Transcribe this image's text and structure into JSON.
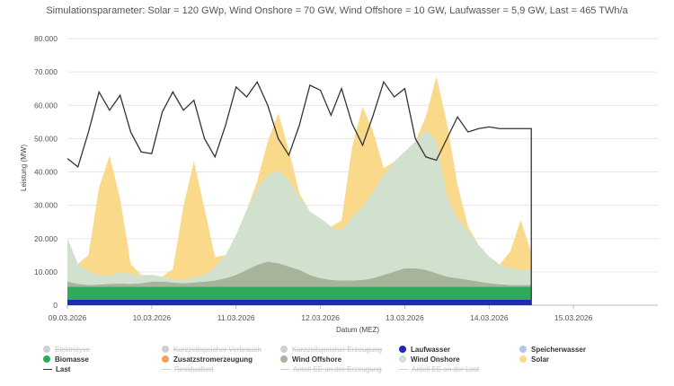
{
  "chart_data": {
    "type": "area",
    "subtitle": "Simulationsparameter: Solar = 120 GWp, Wind Onshore = 70 GW, Wind Offshore = 10 GW, Laufwasser = 5,9 GW, Last = 465 TWh/a",
    "xlabel": "Datum (MEZ)",
    "ylabel": "Leistung (MW)",
    "ylim": [
      0,
      80000
    ],
    "yticks": [
      "0",
      "10.000",
      "20.000",
      "30.000",
      "40.000",
      "50.000",
      "60.000",
      "70.000",
      "80.000"
    ],
    "xlim_hours": [
      0,
      168
    ],
    "xticks": [
      {
        "hour": 0,
        "label": "09.03.2026"
      },
      {
        "hour": 24,
        "label": "10.03.2026"
      },
      {
        "hour": 48,
        "label": "11.03.2026"
      },
      {
        "hour": 72,
        "label": "12.03.2026"
      },
      {
        "hour": 96,
        "label": "13.03.2026"
      },
      {
        "hour": 120,
        "label": "14.03.2026"
      },
      {
        "hour": 144,
        "label": "15.03.2026"
      }
    ],
    "data_end_hour": 132,
    "hours": [
      0,
      3,
      6,
      9,
      12,
      15,
      18,
      21,
      24,
      27,
      30,
      33,
      36,
      39,
      42,
      45,
      48,
      51,
      54,
      57,
      60,
      63,
      66,
      69,
      72,
      75,
      78,
      81,
      84,
      87,
      90,
      93,
      96,
      99,
      102,
      105,
      108,
      111,
      114,
      117,
      120,
      123,
      126,
      129,
      132
    ],
    "series": [
      {
        "name": "Laufwasser",
        "type": "area",
        "color": "#1f2bb5",
        "values": [
          1600,
          1600,
          1600,
          1600,
          1600,
          1600,
          1600,
          1600,
          1600,
          1600,
          1600,
          1600,
          1600,
          1600,
          1600,
          1600,
          1600,
          1600,
          1600,
          1600,
          1600,
          1600,
          1600,
          1600,
          1600,
          1600,
          1600,
          1600,
          1600,
          1600,
          1600,
          1600,
          1600,
          1600,
          1600,
          1600,
          1600,
          1600,
          1600,
          1600,
          1600,
          1600,
          1600,
          1600,
          1600
        ]
      },
      {
        "name": "Biomasse",
        "type": "area",
        "color": "#2eab5a",
        "values": [
          4000,
          4000,
          4000,
          4000,
          4000,
          4000,
          4000,
          4000,
          4000,
          4000,
          4000,
          4000,
          4000,
          4000,
          4000,
          4000,
          4000,
          4000,
          4000,
          4000,
          4000,
          4000,
          4000,
          4000,
          4000,
          4000,
          4000,
          4000,
          4000,
          4000,
          4000,
          4000,
          4000,
          4000,
          4000,
          4000,
          4000,
          4000,
          4000,
          4000,
          4000,
          4000,
          4000,
          4000,
          4000
        ]
      },
      {
        "name": "Wind Offshore",
        "type": "area",
        "color": "#a6b49c",
        "values": [
          1500,
          800,
          500,
          600,
          800,
          900,
          800,
          1000,
          1500,
          1500,
          1200,
          1000,
          1200,
          1500,
          1800,
          2500,
          3500,
          5000,
          6500,
          7500,
          7000,
          6000,
          5000,
          3500,
          2500,
          2000,
          1800,
          1800,
          2000,
          2500,
          3500,
          4500,
          5500,
          5500,
          5000,
          4000,
          3000,
          2500,
          2000,
          1500,
          1000,
          700,
          500,
          500,
          500
        ]
      },
      {
        "name": "Wind Onshore",
        "type": "area",
        "color": "#d2e0ce",
        "values": [
          13000,
          6000,
          4000,
          3000,
          2500,
          3500,
          3000,
          2500,
          2000,
          1500,
          1000,
          1000,
          1500,
          2000,
          4000,
          7000,
          12000,
          18000,
          23000,
          26000,
          28000,
          26000,
          22000,
          19000,
          18000,
          16000,
          15000,
          19000,
          22000,
          26000,
          30000,
          33000,
          35000,
          38000,
          42000,
          40000,
          24000,
          18000,
          15000,
          11000,
          8000,
          6000,
          5000,
          4500,
          4500
        ]
      },
      {
        "name": "Solar",
        "type": "area",
        "color": "#fbd98b",
        "values": [
          0,
          0,
          5000,
          26000,
          36000,
          22000,
          3000,
          0,
          0,
          0,
          3000,
          22000,
          35000,
          20000,
          3000,
          0,
          0,
          0,
          2000,
          10000,
          17000,
          9000,
          1000,
          0,
          0,
          0,
          3000,
          21000,
          30000,
          18000,
          2000,
          0,
          0,
          0,
          4000,
          19000,
          22000,
          10000,
          1000,
          0,
          0,
          0,
          5000,
          15000,
          5000
        ]
      },
      {
        "name": "Last",
        "type": "line",
        "color": "#333333",
        "values": [
          44000,
          41500,
          52000,
          64000,
          58500,
          63000,
          52000,
          46000,
          45500,
          58000,
          64000,
          58500,
          61500,
          50000,
          44500,
          54000,
          65500,
          62500,
          67000,
          60000,
          50000,
          45000,
          54000,
          66000,
          64500,
          57000,
          65000,
          54500,
          48000,
          57000,
          67000,
          62500,
          65000,
          50000,
          44500,
          43500,
          50000,
          56500,
          52000,
          53000,
          53500,
          53000,
          53000,
          53000,
          53000
        ]
      }
    ]
  },
  "legend": [
    {
      "label": "Elektrolyse",
      "color": "#cfcfcf",
      "shape": "circle",
      "hidden": true
    },
    {
      "label": "Kurzzeitspeicher Verbrauch",
      "color": "#cfcfcf",
      "shape": "circle",
      "hidden": true
    },
    {
      "label": "Kurzzeitspeicher Erzeugung",
      "color": "#cfcfcf",
      "shape": "circle",
      "hidden": true
    },
    {
      "label": "Laufwasser",
      "color": "#1f2bb5",
      "shape": "circle",
      "hidden": false
    },
    {
      "label": "Speicherwasser",
      "color": "#b3c6ee",
      "shape": "circle",
      "hidden": false
    },
    {
      "label": "Biomasse",
      "color": "#2eab5a",
      "shape": "circle",
      "hidden": false
    },
    {
      "label": "Zusatzstromerzeugung",
      "color": "#f0a05a",
      "shape": "circle",
      "hidden": false
    },
    {
      "label": "Wind Offshore",
      "color": "#a6b49c",
      "shape": "circle",
      "hidden": false
    },
    {
      "label": "Wind Onshore",
      "color": "#d2e0ce",
      "shape": "circle",
      "hidden": false
    },
    {
      "label": "Solar",
      "color": "#fbd98b",
      "shape": "circle",
      "hidden": false
    },
    {
      "label": "Last",
      "color": "#333333",
      "shape": "line",
      "hidden": false
    },
    {
      "label": "Residuallast",
      "color": "#cfcfcf",
      "shape": "line",
      "hidden": true
    },
    {
      "label": "Anteil EE an der Erzeugung",
      "color": "#cfcfcf",
      "shape": "line",
      "hidden": true
    },
    {
      "label": "Anteil EE an der Last",
      "color": "#cfcfcf",
      "shape": "line",
      "hidden": true
    }
  ]
}
